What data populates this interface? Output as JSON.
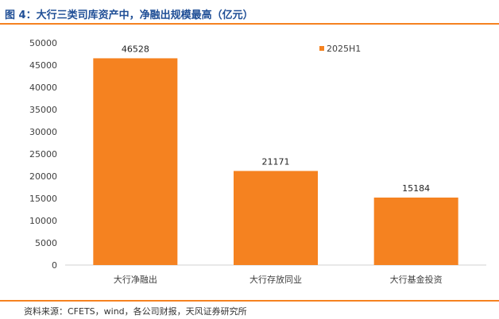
{
  "header": {
    "title": "图 4：大行三类司库资产中，净融出规模最高（亿元）"
  },
  "footer": {
    "source": "资料来源：CFETS，wind，各公司财报，天风证券研究所"
  },
  "chart_data": {
    "type": "bar",
    "categories": [
      "大行净融出",
      "大行存放同业",
      "大行基金投资"
    ],
    "series": [
      {
        "name": "2025H1",
        "values": [
          46528,
          21171,
          15184
        ],
        "color": "#f58220"
      }
    ],
    "ylim": [
      0,
      50000
    ],
    "yticks": [
      0,
      5000,
      10000,
      15000,
      20000,
      25000,
      30000,
      35000,
      40000,
      45000,
      50000
    ],
    "grid": false,
    "legend": "top-right"
  }
}
